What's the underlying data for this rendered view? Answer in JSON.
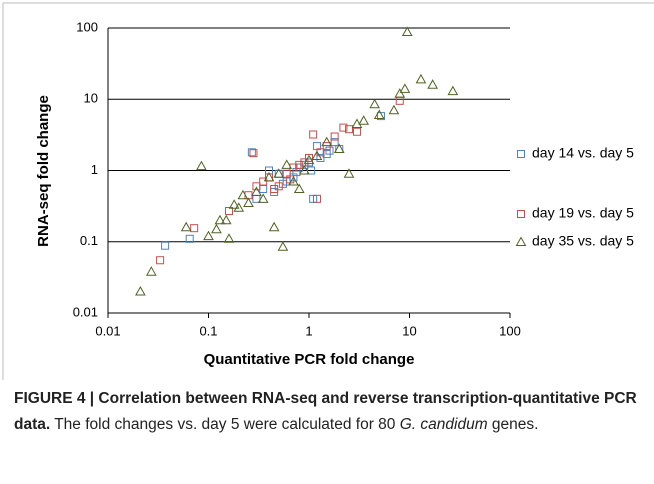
{
  "chart_data": {
    "type": "scatter",
    "xlabel": "Quantitative PCR fold change",
    "ylabel": "RNA-seq fold change",
    "xscale": "log",
    "yscale": "log",
    "xlim": [
      0.01,
      100
    ],
    "ylim": [
      0.01,
      100
    ],
    "xticks": [
      0.01,
      0.1,
      1,
      10,
      100
    ],
    "yticks": [
      0.01,
      0.1,
      1,
      10,
      100
    ],
    "grid": true,
    "legend": "right",
    "series": [
      {
        "name": "day 14 vs. day 5",
        "color": "#4f81bd",
        "marker": "square",
        "x": [
          0.037,
          0.065,
          0.27,
          0.4,
          0.5,
          0.6,
          0.7,
          0.8,
          0.9,
          1.0,
          1.1,
          1.2,
          1.3,
          1.5,
          1.8,
          2.0,
          5.2,
          0.45,
          0.55,
          0.75,
          0.35,
          1.05,
          1.6,
          0.3
        ],
        "values": [
          0.088,
          0.11,
          1.8,
          1.0,
          0.9,
          0.7,
          0.8,
          1.1,
          1.2,
          1.3,
          0.4,
          2.2,
          1.5,
          1.7,
          2.5,
          2.0,
          5.8,
          0.5,
          0.65,
          0.95,
          0.55,
          1.0,
          1.9,
          0.4
        ]
      },
      {
        "name": "day 19 vs. day 5",
        "color": "#c0504d",
        "marker": "square",
        "x": [
          0.033,
          0.072,
          0.16,
          0.28,
          0.25,
          0.3,
          0.35,
          0.4,
          0.5,
          0.6,
          0.7,
          0.8,
          0.9,
          1.0,
          1.1,
          1.2,
          1.3,
          1.5,
          1.8,
          2.2,
          2.5,
          3.0,
          8.0,
          0.45,
          0.65
        ],
        "values": [
          0.055,
          0.155,
          0.27,
          1.75,
          0.45,
          0.6,
          0.7,
          0.8,
          0.6,
          0.9,
          1.1,
          1.2,
          1.3,
          1.5,
          3.2,
          0.4,
          1.8,
          2.2,
          3.0,
          4.0,
          3.8,
          3.5,
          9.5,
          0.55,
          0.75
        ]
      },
      {
        "name": "day 35 vs. day 5",
        "color": "#4f6228",
        "marker": "triangle",
        "x": [
          0.021,
          0.027,
          0.06,
          0.085,
          0.1,
          0.12,
          0.15,
          0.18,
          0.2,
          0.22,
          0.25,
          0.3,
          0.35,
          0.4,
          0.5,
          0.55,
          0.6,
          0.7,
          0.8,
          0.9,
          1.0,
          1.2,
          1.5,
          2.0,
          2.5,
          3.0,
          3.5,
          4.5,
          5.0,
          7.0,
          8.0,
          9.0,
          9.5,
          13,
          17,
          27,
          0.45,
          0.16,
          0.13
        ],
        "values": [
          0.02,
          0.038,
          0.16,
          1.15,
          0.12,
          0.15,
          0.2,
          0.33,
          0.3,
          0.45,
          0.35,
          0.5,
          0.4,
          0.8,
          0.9,
          0.085,
          1.2,
          0.7,
          0.55,
          1.0,
          1.4,
          1.6,
          2.5,
          2.0,
          0.9,
          4.5,
          5.0,
          8.5,
          6.0,
          7.0,
          12,
          14,
          88,
          19,
          16,
          13,
          0.16,
          0.11,
          0.2
        ]
      }
    ]
  },
  "caption": {
    "label": "FIGURE 4 | Correlation between RNA-seq and reverse transcription-quantitative PCR data.",
    "text_1": "The fold changes vs. day 5 were calculated for 80 ",
    "italic": "G. candidum",
    "text_2": " genes."
  }
}
